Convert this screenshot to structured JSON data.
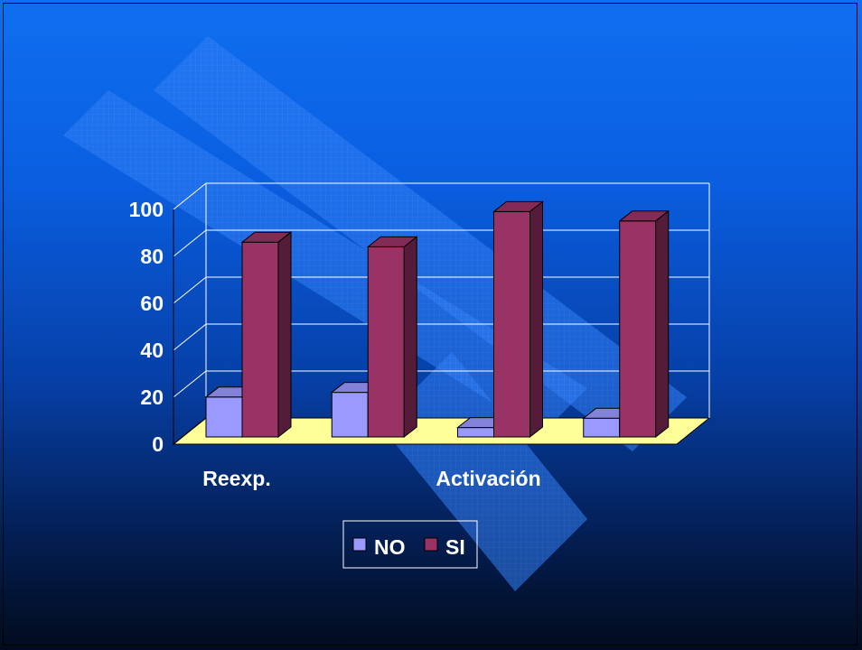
{
  "chart_data": {
    "type": "bar",
    "categories": [
      "Reexp.",
      "",
      "Activación",
      ""
    ],
    "series": [
      {
        "name": "NO",
        "values": [
          17,
          19,
          4,
          8
        ],
        "color": "#9999ff"
      },
      {
        "name": "SI",
        "values": [
          83,
          81,
          96,
          92
        ],
        "color": "#993366"
      }
    ],
    "y_ticks": [
      "0",
      "20",
      "40",
      "60",
      "80",
      "100"
    ],
    "ylim": [
      0,
      100
    ],
    "grid": true,
    "floor_color": "#ffff99",
    "legend": {
      "placement": "bottom-center",
      "items": [
        "NO",
        "SI"
      ]
    }
  }
}
